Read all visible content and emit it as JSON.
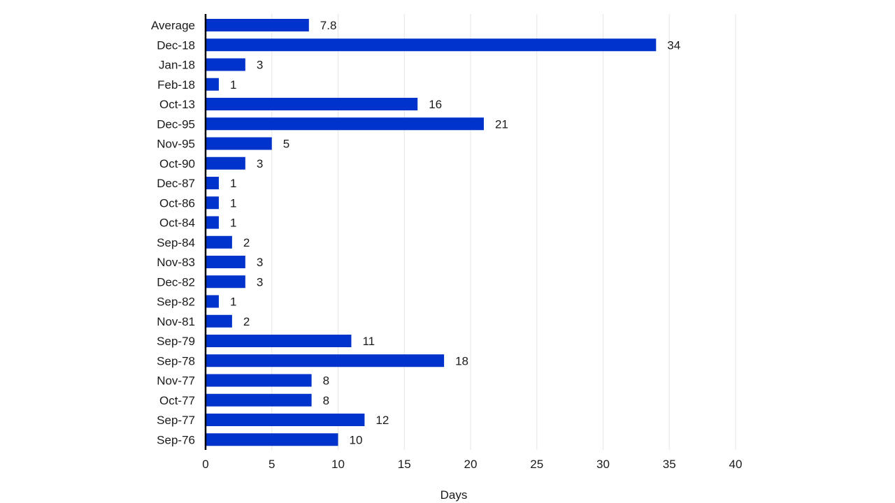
{
  "chart_data": {
    "type": "bar",
    "orientation": "horizontal",
    "categories": [
      "Average",
      "Dec-18",
      "Jan-18",
      "Feb-18",
      "Oct-13",
      "Dec-95",
      "Nov-95",
      "Oct-90",
      "Dec-87",
      "Oct-86",
      "Oct-84",
      "Sep-84",
      "Nov-83",
      "Dec-82",
      "Sep-82",
      "Nov-81",
      "Sep-79",
      "Sep-78",
      "Nov-77",
      "Oct-77",
      "Sep-77",
      "Sep-76"
    ],
    "values": [
      7.8,
      34,
      3,
      1,
      16,
      21,
      5,
      3,
      1,
      1,
      1,
      2,
      3,
      3,
      1,
      2,
      11,
      18,
      8,
      8,
      12,
      10
    ],
    "data_labels": [
      "7.8",
      "34",
      "3",
      "1",
      "16",
      "21",
      "5",
      "3",
      "1",
      "1",
      "1",
      "2",
      "3",
      "3",
      "1",
      "2",
      "11",
      "18",
      "8",
      "8",
      "12",
      "10"
    ],
    "title": "",
    "xlabel": "Days",
    "ylabel": "",
    "xlim": [
      0,
      40
    ],
    "x_ticks": [
      0,
      5,
      10,
      15,
      20,
      25,
      30,
      35,
      40
    ],
    "x_tick_labels": [
      "0",
      "5",
      "10",
      "15",
      "20",
      "25",
      "30",
      "35",
      "40"
    ],
    "grid": "vertical",
    "legend": "none",
    "colors": {
      "bar": "#0033cc",
      "grid": "#e6e6e6",
      "axis": "#000000",
      "text": "#1a1a1a"
    }
  }
}
